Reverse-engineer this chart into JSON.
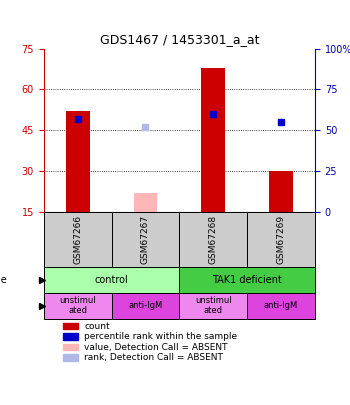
{
  "title": "GDS1467 / 1453301_a_at",
  "samples": [
    "GSM67266",
    "GSM67267",
    "GSM67268",
    "GSM67269"
  ],
  "bar_heights": [
    52,
    null,
    68,
    30
  ],
  "bar_colors": [
    "#cc0000",
    null,
    "#cc0000",
    "#cc0000"
  ],
  "absent_bar_heights": [
    null,
    22,
    null,
    null
  ],
  "absent_bar_colors": [
    null,
    "#ffb6b6",
    null,
    null
  ],
  "dot_values": [
    57,
    null,
    60,
    55
  ],
  "dot_absent_values": [
    null,
    52,
    null,
    null
  ],
  "dot_colors": [
    "#0000cc",
    null,
    "#0000cc",
    "#0000cc"
  ],
  "dot_absent_colors": [
    null,
    "#b0b8e8",
    null,
    null
  ],
  "ylim_left": [
    15,
    75
  ],
  "ylim_right": [
    0,
    100
  ],
  "yticks_left": [
    15,
    30,
    45,
    60,
    75
  ],
  "yticks_right": [
    0,
    25,
    50,
    75,
    100
  ],
  "ytick_labels_right": [
    "0",
    "25",
    "50",
    "75",
    "100%"
  ],
  "left_axis_color": "#cc0000",
  "right_axis_color": "#0000aa",
  "cell_line_labels": [
    "control",
    "TAK1 deficient"
  ],
  "cell_line_spans": [
    [
      0,
      2
    ],
    [
      2,
      4
    ]
  ],
  "cell_line_colors": [
    "#aaffaa",
    "#44cc44"
  ],
  "agent_labels": [
    "unstimul\nated",
    "anti-IgM",
    "unstimul\nated",
    "anti-IgM"
  ],
  "agent_colors": [
    "#ee88ee",
    "#dd44dd",
    "#ee88ee",
    "#dd44dd"
  ],
  "legend_items": [
    {
      "color": "#cc0000",
      "label": "count"
    },
    {
      "color": "#0000cc",
      "label": "percentile rank within the sample"
    },
    {
      "color": "#ffb6b6",
      "label": "value, Detection Call = ABSENT"
    },
    {
      "color": "#b0b8e8",
      "label": "rank, Detection Call = ABSENT"
    }
  ]
}
